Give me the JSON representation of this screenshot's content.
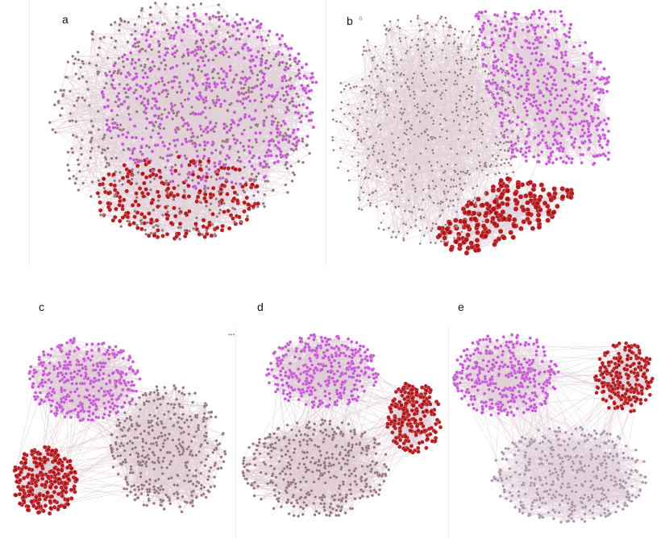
{
  "figure": {
    "panels": [
      {
        "id": "a",
        "label": "a"
      },
      {
        "id": "b",
        "label": "b",
        "marker": "a"
      },
      {
        "id": "c",
        "label": "c"
      },
      {
        "id": "d",
        "label": "d",
        "marker": "•••"
      },
      {
        "id": "e",
        "label": "e"
      }
    ]
  },
  "colors": {
    "red_community": "#b00f13",
    "magenta_community": "#c24fd0",
    "brown_community": "#8f6b73",
    "edge": "#c9a9b9",
    "background": "#ffffff"
  }
}
